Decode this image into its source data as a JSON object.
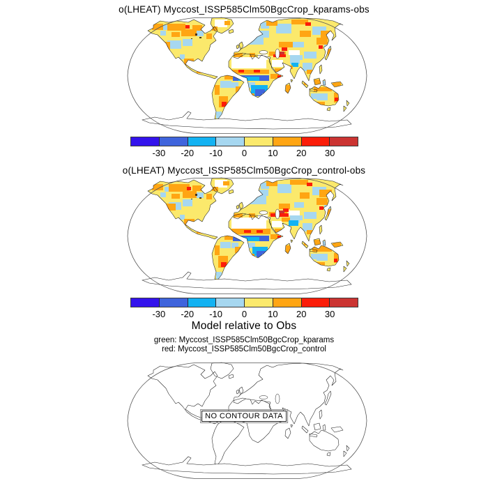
{
  "figure": {
    "background": "#ffffff"
  },
  "panels": [
    {
      "id": "map1",
      "title": "o(LHEAT) Myccost_ISSP585Clm50BgcCrop_kparams-obs"
    },
    {
      "id": "map2",
      "title": "o(LHEAT) Myccost_ISSP585Clm50BgcCrop_control-obs"
    },
    {
      "id": "map3",
      "title": "Model relative to Obs",
      "legend_green": "green: Myccost_ISSP585Clm50BgcCrop_kparams",
      "legend_red": "red: Myccost_ISSP585Clm50BgcCrop_control",
      "no_data_label": "NO CONTOUR DATA"
    }
  ],
  "colorbar": {
    "ticks": [
      "-30",
      "-20",
      "-10",
      "0",
      "10",
      "20",
      "30"
    ],
    "colors": [
      "#3313EC",
      "#3F64DC",
      "#13B2F2",
      "#A6D7F0",
      "#FBE96C",
      "#FFA513",
      "#FB1D09",
      "#CB3432"
    ]
  },
  "extra_colors": {
    "w": "#FFFFFF",
    "d": "#4A3318"
  },
  "map_patches": {
    "map1": [
      [
        126,
        6,
        18,
        11,
        "w"
      ],
      [
        122,
        16,
        8,
        6,
        5
      ],
      [
        140,
        8,
        8,
        6,
        5
      ],
      [
        36,
        12,
        16,
        9,
        5
      ],
      [
        52,
        14,
        10,
        7,
        3
      ],
      [
        58,
        12,
        26,
        10,
        5
      ],
      [
        78,
        20,
        22,
        10,
        5
      ],
      [
        94,
        14,
        14,
        8,
        5
      ],
      [
        64,
        24,
        12,
        7,
        5
      ],
      [
        84,
        14,
        6,
        5,
        6
      ],
      [
        100,
        22,
        10,
        8,
        3
      ],
      [
        48,
        22,
        8,
        7,
        3
      ],
      [
        114,
        26,
        8,
        8,
        5
      ],
      [
        98,
        26,
        3,
        3,
        "d"
      ],
      [
        104,
        31,
        3,
        2,
        "d"
      ],
      [
        92,
        33,
        2,
        2,
        "d"
      ],
      [
        58,
        36,
        20,
        12,
        3
      ],
      [
        80,
        34,
        14,
        10,
        3
      ],
      [
        52,
        38,
        10,
        12,
        5
      ],
      [
        54,
        44,
        5,
        5,
        6
      ],
      [
        76,
        56,
        7,
        7,
        3
      ],
      [
        82,
        62,
        14,
        10,
        5
      ],
      [
        100,
        78,
        10,
        5,
        5
      ],
      [
        140,
        86,
        12,
        6,
        5
      ],
      [
        134,
        94,
        16,
        10,
        3
      ],
      [
        150,
        96,
        10,
        8,
        3
      ],
      [
        156,
        102,
        10,
        9,
        5
      ],
      [
        126,
        100,
        7,
        14,
        5
      ],
      [
        132,
        116,
        13,
        16,
        5
      ],
      [
        136,
        124,
        7,
        7,
        6
      ],
      [
        128,
        138,
        8,
        10,
        3
      ],
      [
        154,
        54,
        12,
        7,
        5
      ],
      [
        176,
        54,
        8,
        6,
        5
      ],
      [
        172,
        28,
        24,
        14,
        3
      ],
      [
        190,
        22,
        14,
        10,
        3
      ],
      [
        192,
        10,
        12,
        9,
        3
      ],
      [
        214,
        12,
        22,
        14,
        3
      ],
      [
        266,
        16,
        20,
        12,
        3
      ],
      [
        200,
        8,
        16,
        7,
        5
      ],
      [
        236,
        6,
        24,
        7,
        5
      ],
      [
        278,
        22,
        16,
        10,
        5
      ],
      [
        248,
        22,
        16,
        9,
        5
      ],
      [
        256,
        10,
        8,
        5,
        6
      ],
      [
        218,
        38,
        20,
        8,
        5
      ],
      [
        238,
        38,
        16,
        8,
        3
      ],
      [
        222,
        46,
        8,
        5,
        6
      ],
      [
        204,
        52,
        24,
        6,
        5
      ],
      [
        210,
        56,
        18,
        4,
        6
      ],
      [
        218,
        52,
        8,
        4,
        7
      ],
      [
        208,
        64,
        16,
        10,
        "w"
      ],
      [
        212,
        76,
        10,
        5,
        5
      ],
      [
        150,
        60,
        50,
        16,
        "w"
      ],
      [
        188,
        56,
        14,
        8,
        "w"
      ],
      [
        150,
        78,
        54,
        6,
        5
      ],
      [
        160,
        78,
        8,
        4,
        6
      ],
      [
        182,
        78,
        9,
        4,
        6
      ],
      [
        152,
        86,
        52,
        8,
        1
      ],
      [
        160,
        88,
        30,
        6,
        2
      ],
      [
        172,
        96,
        12,
        8,
        3
      ],
      [
        206,
        84,
        12,
        7,
        5
      ],
      [
        216,
        86,
        5,
        4,
        6
      ],
      [
        178,
        100,
        24,
        15,
        2
      ],
      [
        184,
        106,
        14,
        10,
        1
      ],
      [
        194,
        112,
        10,
        9,
        3
      ],
      [
        174,
        112,
        9,
        13,
        5
      ],
      [
        182,
        124,
        12,
        6,
        3
      ],
      [
        228,
        100,
        7,
        11,
        5
      ],
      [
        232,
        50,
        16,
        7,
        "w"
      ],
      [
        234,
        57,
        18,
        7,
        3
      ],
      [
        234,
        64,
        14,
        6,
        3
      ],
      [
        236,
        68,
        10,
        6,
        2
      ],
      [
        232,
        72,
        6,
        5,
        5
      ],
      [
        252,
        68,
        14,
        12,
        3
      ],
      [
        258,
        78,
        8,
        6,
        5
      ],
      [
        254,
        52,
        18,
        10,
        3
      ],
      [
        272,
        32,
        16,
        10,
        5
      ],
      [
        275,
        43,
        6,
        5,
        6
      ],
      [
        283,
        42,
        9,
        8,
        3
      ],
      [
        288,
        48,
        6,
        12,
        5
      ],
      [
        254,
        94,
        10,
        6,
        5
      ],
      [
        269,
        92,
        9,
        7,
        5
      ],
      [
        280,
        94,
        7,
        6,
        3
      ],
      [
        295,
        96,
        12,
        6,
        5
      ],
      [
        268,
        103,
        26,
        6,
        5
      ],
      [
        297,
        111,
        8,
        14,
        5
      ],
      [
        272,
        112,
        16,
        10,
        3
      ],
      [
        270,
        124,
        14,
        5,
        5
      ],
      [
        298,
        118,
        5,
        5,
        6
      ],
      [
        264,
        112,
        8,
        8,
        3
      ]
    ],
    "map2": [
      [
        126,
        6,
        18,
        11,
        "w"
      ],
      [
        122,
        16,
        9,
        6,
        5
      ],
      [
        138,
        8,
        9,
        6,
        5
      ],
      [
        36,
        12,
        16,
        9,
        5
      ],
      [
        54,
        16,
        9,
        7,
        3
      ],
      [
        60,
        12,
        30,
        11,
        5
      ],
      [
        80,
        22,
        20,
        10,
        5
      ],
      [
        94,
        14,
        13,
        8,
        5
      ],
      [
        64,
        26,
        12,
        7,
        5
      ],
      [
        86,
        16,
        6,
        5,
        6
      ],
      [
        100,
        24,
        10,
        8,
        3
      ],
      [
        48,
        24,
        8,
        7,
        3
      ],
      [
        114,
        26,
        8,
        8,
        5
      ],
      [
        98,
        26,
        3,
        3,
        "d"
      ],
      [
        104,
        31,
        3,
        2,
        "d"
      ],
      [
        92,
        33,
        2,
        2,
        "d"
      ],
      [
        60,
        38,
        18,
        11,
        3
      ],
      [
        56,
        40,
        14,
        10,
        5
      ],
      [
        80,
        34,
        14,
        10,
        3
      ],
      [
        55,
        46,
        5,
        5,
        6
      ],
      [
        76,
        56,
        7,
        7,
        3
      ],
      [
        82,
        62,
        15,
        10,
        5
      ],
      [
        100,
        78,
        10,
        5,
        5
      ],
      [
        140,
        86,
        12,
        6,
        5
      ],
      [
        134,
        95,
        15,
        9,
        3
      ],
      [
        150,
        96,
        10,
        8,
        3
      ],
      [
        155,
        102,
        11,
        9,
        5
      ],
      [
        126,
        100,
        7,
        14,
        5
      ],
      [
        131,
        115,
        14,
        17,
        5
      ],
      [
        135,
        124,
        8,
        7,
        6
      ],
      [
        128,
        138,
        8,
        10,
        3
      ],
      [
        154,
        54,
        12,
        7,
        5
      ],
      [
        175,
        54,
        9,
        6,
        5
      ],
      [
        174,
        26,
        26,
        15,
        3
      ],
      [
        190,
        20,
        13,
        9,
        3
      ],
      [
        192,
        10,
        12,
        9,
        3
      ],
      [
        216,
        12,
        20,
        13,
        3
      ],
      [
        266,
        16,
        20,
        12,
        3
      ],
      [
        200,
        8,
        16,
        7,
        5
      ],
      [
        234,
        6,
        26,
        7,
        5
      ],
      [
        276,
        20,
        18,
        11,
        5
      ],
      [
        248,
        24,
        14,
        9,
        5
      ],
      [
        258,
        10,
        8,
        5,
        6
      ],
      [
        218,
        40,
        16,
        8,
        5
      ],
      [
        240,
        38,
        14,
        8,
        3
      ],
      [
        224,
        47,
        8,
        5,
        6
      ],
      [
        204,
        52,
        26,
        6,
        5
      ],
      [
        206,
        54,
        26,
        5,
        6
      ],
      [
        218,
        50,
        8,
        4,
        7
      ],
      [
        208,
        65,
        15,
        9,
        "w"
      ],
      [
        222,
        60,
        12,
        6,
        5
      ],
      [
        212,
        76,
        10,
        5,
        5
      ],
      [
        150,
        60,
        50,
        16,
        "w"
      ],
      [
        188,
        56,
        14,
        8,
        "w"
      ],
      [
        150,
        76,
        56,
        8,
        5
      ],
      [
        168,
        78,
        10,
        4,
        6
      ],
      [
        186,
        78,
        9,
        4,
        6
      ],
      [
        152,
        86,
        52,
        8,
        1
      ],
      [
        162,
        88,
        28,
        6,
        2
      ],
      [
        172,
        96,
        12,
        8,
        3
      ],
      [
        206,
        84,
        12,
        7,
        5
      ],
      [
        216,
        86,
        5,
        4,
        6
      ],
      [
        180,
        102,
        22,
        13,
        2
      ],
      [
        186,
        108,
        13,
        9,
        1
      ],
      [
        194,
        112,
        10,
        9,
        3
      ],
      [
        174,
        112,
        9,
        13,
        5
      ],
      [
        182,
        124,
        12,
        6,
        3
      ],
      [
        228,
        100,
        7,
        11,
        5
      ],
      [
        232,
        50,
        16,
        7,
        "w"
      ],
      [
        234,
        57,
        18,
        7,
        3
      ],
      [
        234,
        62,
        14,
        6,
        3
      ],
      [
        232,
        64,
        14,
        8,
        2
      ],
      [
        230,
        73,
        6,
        5,
        5
      ],
      [
        252,
        68,
        14,
        12,
        3
      ],
      [
        258,
        78,
        8,
        6,
        5
      ],
      [
        254,
        52,
        18,
        10,
        3
      ],
      [
        272,
        32,
        16,
        10,
        5
      ],
      [
        276,
        44,
        6,
        5,
        6
      ],
      [
        283,
        42,
        9,
        8,
        3
      ],
      [
        288,
        48,
        6,
        12,
        5
      ],
      [
        254,
        94,
        10,
        6,
        5
      ],
      [
        269,
        92,
        9,
        7,
        5
      ],
      [
        280,
        94,
        7,
        6,
        3
      ],
      [
        295,
        96,
        12,
        6,
        5
      ],
      [
        266,
        101,
        28,
        8,
        5
      ],
      [
        297,
        111,
        8,
        14,
        5
      ],
      [
        272,
        112,
        16,
        10,
        3
      ],
      [
        270,
        124,
        14,
        5,
        5
      ],
      [
        297,
        119,
        5,
        5,
        6
      ],
      [
        264,
        112,
        8,
        8,
        3
      ]
    ]
  },
  "chart_data": [
    {
      "type": "heatmap",
      "title": "o(LHEAT) Myccost_ISSP585Clm50BgcCrop_kparams-obs",
      "region": "global land, Robinson-style projection",
      "colorbar_levels": [
        -30,
        -20,
        -10,
        0,
        10,
        20,
        30
      ],
      "palette": [
        "#3313EC",
        "#3F64DC",
        "#13B2F2",
        "#A6D7F0",
        "#FBE96C",
        "#FFA513",
        "#FB1D09",
        "#CB3432"
      ],
      "legend_position": "bottom",
      "data_note": "Gridded model-minus-observation difference map; individual cell values not legible. Dominant bins: 0..10 over most land, 10..20 over central Canada/Sahel/Middle East, -10..0 patches over Europe/Siberia/US plains, -30..-10 band over tropical and southern Africa, masked (white) Sahara/Arabia/Greenland interior."
    },
    {
      "type": "heatmap",
      "title": "o(LHEAT) Myccost_ISSP585Clm50BgcCrop_control-obs",
      "region": "global land, Robinson-style projection",
      "colorbar_levels": [
        -30,
        -20,
        -10,
        0,
        10,
        20,
        30
      ],
      "palette": [
        "#3313EC",
        "#3F64DC",
        "#13B2F2",
        "#A6D7F0",
        "#FBE96C",
        "#FFA513",
        "#FB1D09",
        "#CB3432"
      ],
      "legend_position": "bottom",
      "data_note": "Same layout as panel 1 with slightly stronger positive (orange/red) band across the Sahel and Middle East."
    },
    {
      "type": "heatmap",
      "title": "Model relative to Obs",
      "legend": [
        {
          "color": "green",
          "label": "Myccost_ISSP585Clm50BgcCrop_kparams"
        },
        {
          "color": "red",
          "label": "Myccost_ISSP585Clm50BgcCrop_control"
        }
      ],
      "annotation": "NO CONTOUR DATA",
      "data_note": "Empty outline map; no contours drawn."
    }
  ]
}
